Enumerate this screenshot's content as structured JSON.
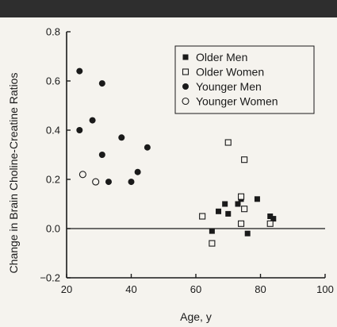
{
  "chart_data": {
    "type": "scatter",
    "title": "",
    "xlabel": "Age, y",
    "ylabel": "Change in Brain Choline-Creatine Ratios",
    "xlim": [
      20,
      100
    ],
    "ylim": [
      -0.2,
      0.8
    ],
    "xticks": [
      20,
      40,
      60,
      80,
      100
    ],
    "yticks": [
      -0.2,
      0.0,
      0.2,
      0.4,
      0.6,
      0.8
    ],
    "xtick_labels": [
      "20",
      "40",
      "60",
      "80",
      "100"
    ],
    "ytick_labels": [
      "−0.2",
      "0.0",
      "0.2",
      "0.4",
      "0.6",
      "0.8"
    ],
    "reference_line_y": 0,
    "grid": false,
    "legend_position": "top-right",
    "series": [
      {
        "name": "Older Men",
        "marker": "filled-square",
        "x": [
          65,
          67,
          69,
          70,
          73,
          74,
          76,
          79,
          83,
          84
        ],
        "y": [
          -0.01,
          0.07,
          0.1,
          0.06,
          0.1,
          0.12,
          -0.02,
          0.12,
          0.05,
          0.04
        ]
      },
      {
        "name": "Older Women",
        "marker": "open-square",
        "x": [
          62,
          65,
          70,
          74,
          75,
          75,
          74,
          83
        ],
        "y": [
          0.05,
          -0.06,
          0.35,
          0.13,
          0.28,
          0.08,
          0.02,
          0.02
        ]
      },
      {
        "name": "Younger Men",
        "marker": "filled-circle",
        "x": [
          24,
          24,
          28,
          31,
          31,
          33,
          37,
          40,
          42,
          45
        ],
        "y": [
          0.64,
          0.4,
          0.44,
          0.59,
          0.3,
          0.19,
          0.37,
          0.19,
          0.23,
          0.33
        ]
      },
      {
        "name": "Younger Women",
        "marker": "open-circle",
        "x": [
          25,
          29
        ],
        "y": [
          0.22,
          0.19
        ]
      }
    ]
  },
  "colors": {
    "ink": "#1a1a1a",
    "background": "#f5f3ee",
    "top_bar": "#2e2e2e"
  }
}
